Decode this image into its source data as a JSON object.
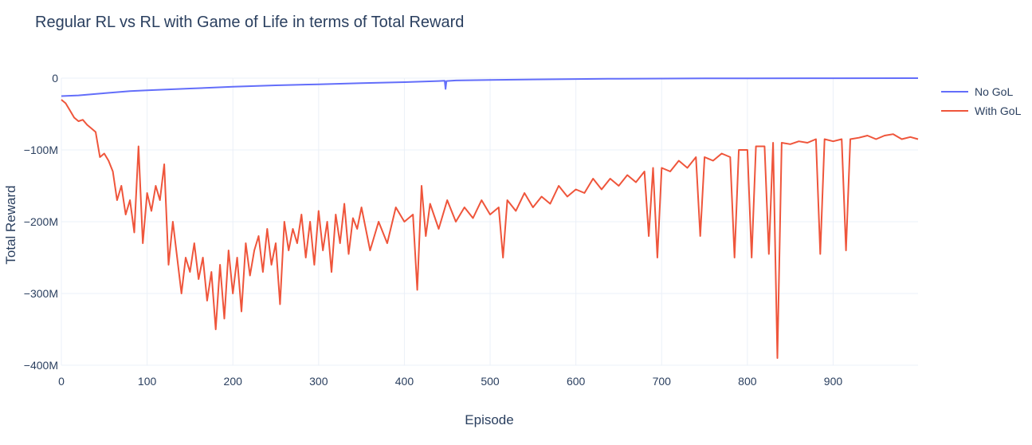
{
  "chart_data": {
    "type": "line",
    "title": "Regular RL vs RL with Game of Life in terms of Total Reward",
    "xlabel": "Episode",
    "ylabel": "Total Reward",
    "xlim": [
      0,
      999
    ],
    "ylim": [
      -400000000,
      0
    ],
    "x_ticks": [
      0,
      100,
      200,
      300,
      400,
      500,
      600,
      700,
      800,
      900
    ],
    "x_tick_labels": [
      "0",
      "100",
      "200",
      "300",
      "400",
      "500",
      "600",
      "700",
      "800",
      "900"
    ],
    "y_ticks": [
      0,
      -100000000,
      -200000000,
      -300000000,
      -400000000
    ],
    "y_tick_labels": [
      "0",
      "−100M",
      "−200M",
      "−300M",
      "−400M"
    ],
    "grid": true,
    "legend_position": "top-right",
    "series": [
      {
        "name": "No GoL",
        "color": "#636efa",
        "points": [
          [
            0,
            -25000000
          ],
          [
            20,
            -24000000
          ],
          [
            50,
            -21000000
          ],
          [
            80,
            -18000000
          ],
          [
            100,
            -17000000
          ],
          [
            150,
            -14500000
          ],
          [
            200,
            -12000000
          ],
          [
            250,
            -10000000
          ],
          [
            300,
            -8500000
          ],
          [
            350,
            -7000000
          ],
          [
            400,
            -5500000
          ],
          [
            440,
            -4000000
          ],
          [
            447,
            -3500000
          ],
          [
            448,
            -15000000
          ],
          [
            449,
            -4000000
          ],
          [
            460,
            -3200000
          ],
          [
            500,
            -2500000
          ],
          [
            550,
            -1800000
          ],
          [
            600,
            -1200000
          ],
          [
            650,
            -800000
          ],
          [
            700,
            -500000
          ],
          [
            750,
            -300000
          ],
          [
            800,
            -200000
          ],
          [
            900,
            -100000
          ],
          [
            999,
            -50000
          ]
        ]
      },
      {
        "name": "With GoL",
        "color": "#ef553b",
        "points": [
          [
            0,
            -30000000
          ],
          [
            5,
            -35000000
          ],
          [
            10,
            -45000000
          ],
          [
            15,
            -55000000
          ],
          [
            20,
            -60000000
          ],
          [
            25,
            -58000000
          ],
          [
            30,
            -65000000
          ],
          [
            35,
            -70000000
          ],
          [
            40,
            -75000000
          ],
          [
            45,
            -110000000
          ],
          [
            50,
            -105000000
          ],
          [
            55,
            -115000000
          ],
          [
            60,
            -130000000
          ],
          [
            65,
            -170000000
          ],
          [
            70,
            -150000000
          ],
          [
            75,
            -190000000
          ],
          [
            80,
            -170000000
          ],
          [
            85,
            -215000000
          ],
          [
            90,
            -95000000
          ],
          [
            95,
            -230000000
          ],
          [
            100,
            -160000000
          ],
          [
            105,
            -185000000
          ],
          [
            110,
            -150000000
          ],
          [
            115,
            -170000000
          ],
          [
            120,
            -120000000
          ],
          [
            125,
            -260000000
          ],
          [
            130,
            -200000000
          ],
          [
            135,
            -250000000
          ],
          [
            140,
            -300000000
          ],
          [
            145,
            -250000000
          ],
          [
            150,
            -270000000
          ],
          [
            155,
            -230000000
          ],
          [
            160,
            -280000000
          ],
          [
            165,
            -250000000
          ],
          [
            170,
            -310000000
          ],
          [
            175,
            -270000000
          ],
          [
            180,
            -350000000
          ],
          [
            185,
            -260000000
          ],
          [
            190,
            -335000000
          ],
          [
            195,
            -240000000
          ],
          [
            200,
            -300000000
          ],
          [
            205,
            -250000000
          ],
          [
            210,
            -325000000
          ],
          [
            215,
            -230000000
          ],
          [
            220,
            -275000000
          ],
          [
            225,
            -240000000
          ],
          [
            230,
            -220000000
          ],
          [
            235,
            -270000000
          ],
          [
            240,
            -210000000
          ],
          [
            245,
            -260000000
          ],
          [
            250,
            -230000000
          ],
          [
            255,
            -315000000
          ],
          [
            260,
            -200000000
          ],
          [
            265,
            -240000000
          ],
          [
            270,
            -210000000
          ],
          [
            275,
            -230000000
          ],
          [
            280,
            -190000000
          ],
          [
            285,
            -250000000
          ],
          [
            290,
            -200000000
          ],
          [
            295,
            -260000000
          ],
          [
            300,
            -185000000
          ],
          [
            305,
            -240000000
          ],
          [
            310,
            -200000000
          ],
          [
            315,
            -270000000
          ],
          [
            320,
            -190000000
          ],
          [
            325,
            -230000000
          ],
          [
            330,
            -175000000
          ],
          [
            335,
            -245000000
          ],
          [
            340,
            -195000000
          ],
          [
            345,
            -210000000
          ],
          [
            350,
            -180000000
          ],
          [
            360,
            -240000000
          ],
          [
            370,
            -200000000
          ],
          [
            380,
            -230000000
          ],
          [
            390,
            -180000000
          ],
          [
            400,
            -200000000
          ],
          [
            410,
            -190000000
          ],
          [
            415,
            -295000000
          ],
          [
            420,
            -150000000
          ],
          [
            425,
            -220000000
          ],
          [
            430,
            -175000000
          ],
          [
            440,
            -210000000
          ],
          [
            450,
            -170000000
          ],
          [
            460,
            -200000000
          ],
          [
            470,
            -180000000
          ],
          [
            480,
            -195000000
          ],
          [
            490,
            -170000000
          ],
          [
            500,
            -190000000
          ],
          [
            510,
            -180000000
          ],
          [
            515,
            -250000000
          ],
          [
            520,
            -170000000
          ],
          [
            530,
            -185000000
          ],
          [
            540,
            -160000000
          ],
          [
            550,
            -180000000
          ],
          [
            560,
            -165000000
          ],
          [
            570,
            -175000000
          ],
          [
            580,
            -150000000
          ],
          [
            590,
            -165000000
          ],
          [
            600,
            -155000000
          ],
          [
            610,
            -160000000
          ],
          [
            620,
            -140000000
          ],
          [
            630,
            -155000000
          ],
          [
            640,
            -140000000
          ],
          [
            650,
            -150000000
          ],
          [
            660,
            -135000000
          ],
          [
            670,
            -145000000
          ],
          [
            680,
            -130000000
          ],
          [
            685,
            -220000000
          ],
          [
            690,
            -125000000
          ],
          [
            695,
            -250000000
          ],
          [
            700,
            -125000000
          ],
          [
            710,
            -130000000
          ],
          [
            720,
            -115000000
          ],
          [
            730,
            -125000000
          ],
          [
            740,
            -110000000
          ],
          [
            745,
            -220000000
          ],
          [
            750,
            -110000000
          ],
          [
            760,
            -115000000
          ],
          [
            770,
            -105000000
          ],
          [
            780,
            -110000000
          ],
          [
            785,
            -250000000
          ],
          [
            790,
            -100000000
          ],
          [
            800,
            -100000000
          ],
          [
            805,
            -250000000
          ],
          [
            810,
            -95000000
          ],
          [
            820,
            -95000000
          ],
          [
            825,
            -245000000
          ],
          [
            830,
            -90000000
          ],
          [
            835,
            -390000000
          ],
          [
            840,
            -90000000
          ],
          [
            850,
            -92000000
          ],
          [
            860,
            -88000000
          ],
          [
            870,
            -90000000
          ],
          [
            880,
            -85000000
          ],
          [
            885,
            -245000000
          ],
          [
            890,
            -85000000
          ],
          [
            900,
            -88000000
          ],
          [
            910,
            -85000000
          ],
          [
            915,
            -240000000
          ],
          [
            920,
            -85000000
          ],
          [
            930,
            -83000000
          ],
          [
            940,
            -80000000
          ],
          [
            950,
            -85000000
          ],
          [
            960,
            -80000000
          ],
          [
            970,
            -78000000
          ],
          [
            980,
            -85000000
          ],
          [
            990,
            -82000000
          ],
          [
            999,
            -85000000
          ]
        ]
      }
    ]
  }
}
